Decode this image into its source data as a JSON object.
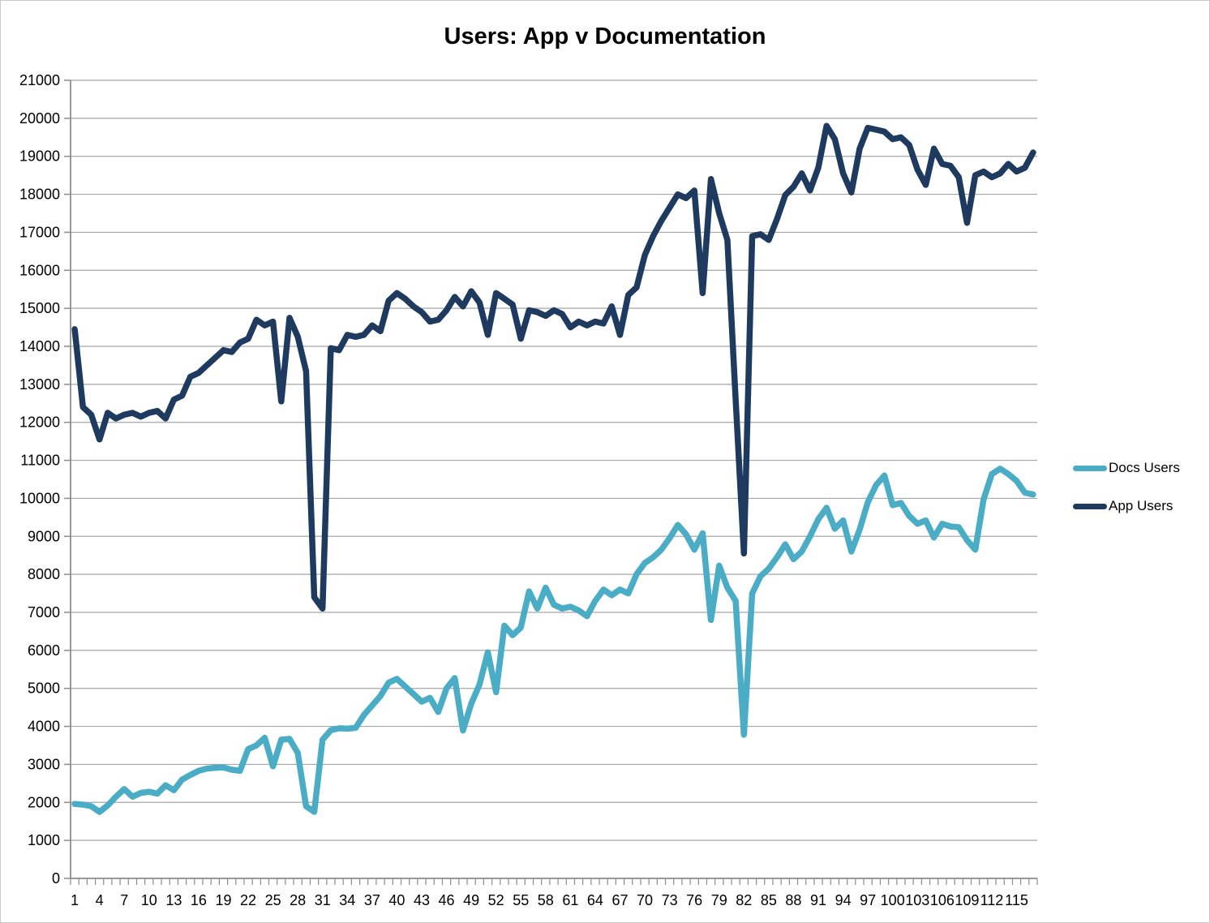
{
  "chart_data": {
    "type": "line",
    "title": "Users: App v Documentation",
    "xlabel": "",
    "ylabel": "",
    "point_count": 117,
    "x_label_interval": 3,
    "x_tick_labels": [
      "1",
      "4",
      "7",
      "10",
      "13",
      "16",
      "19",
      "22",
      "25",
      "28",
      "31",
      "34",
      "37",
      "40",
      "43",
      "46",
      "49",
      "52",
      "55",
      "58",
      "61",
      "64",
      "67",
      "70",
      "73",
      "76",
      "79",
      "82",
      "85",
      "88",
      "91",
      "94",
      "97",
      "100",
      "103",
      "106",
      "109",
      "112",
      "115"
    ],
    "ylim": [
      0,
      21000
    ],
    "y_tick_interval": 1000,
    "y_tick_labels": [
      "0",
      "1000",
      "2000",
      "3000",
      "4000",
      "5000",
      "6000",
      "7000",
      "8000",
      "9000",
      "10000",
      "11000",
      "12000",
      "13000",
      "14000",
      "15000",
      "16000",
      "17000",
      "18000",
      "19000",
      "20000",
      "21000"
    ],
    "grid": true,
    "legend_position": "right",
    "gridline_color": "#A6A6A6",
    "axis_color": "#8C8C8C",
    "background_color": "#FFFFFF",
    "series": [
      {
        "name": "Docs Users",
        "color": "#4BACC6",
        "values": [
          1960,
          1940,
          1900,
          1750,
          1920,
          2150,
          2350,
          2150,
          2250,
          2280,
          2230,
          2450,
          2320,
          2600,
          2720,
          2830,
          2890,
          2910,
          2920,
          2860,
          2830,
          3400,
          3500,
          3700,
          2950,
          3650,
          3670,
          3300,
          1900,
          1750,
          3650,
          3900,
          3950,
          3940,
          3960,
          4300,
          4550,
          4800,
          5150,
          5250,
          5050,
          4850,
          4650,
          4750,
          4380,
          5000,
          5270,
          3890,
          4600,
          5100,
          5950,
          4900,
          6650,
          6400,
          6600,
          7550,
          7100,
          7650,
          7200,
          7100,
          7150,
          7050,
          6900,
          7300,
          7600,
          7450,
          7600,
          7500,
          8000,
          8300,
          8450,
          8650,
          8950,
          9300,
          9050,
          8650,
          9080,
          6800,
          8230,
          7650,
          7300,
          3780,
          7500,
          7950,
          8150,
          8450,
          8790,
          8400,
          8600,
          9000,
          9450,
          9750,
          9200,
          9420,
          8600,
          9180,
          9900,
          10350,
          10600,
          9820,
          9880,
          9540,
          9330,
          9420,
          8970,
          9330,
          9260,
          9240,
          8900,
          8650,
          9970,
          10640,
          10780,
          10640,
          10460,
          10150,
          10100
        ]
      },
      {
        "name": "App Users",
        "color": "#1E3A5E",
        "values": [
          14450,
          12400,
          12200,
          11550,
          12250,
          12100,
          12200,
          12250,
          12150,
          12250,
          12300,
          12100,
          12600,
          12700,
          13200,
          13300,
          13500,
          13700,
          13900,
          13850,
          14100,
          14200,
          14700,
          14550,
          14650,
          12550,
          14750,
          14250,
          13350,
          7400,
          7100,
          13950,
          13900,
          14300,
          14250,
          14300,
          14550,
          14400,
          15200,
          15400,
          15250,
          15050,
          14900,
          14650,
          14700,
          14950,
          15300,
          15050,
          15450,
          15150,
          14300,
          15400,
          15250,
          15100,
          14200,
          14950,
          14900,
          14800,
          14950,
          14850,
          14500,
          14650,
          14550,
          14650,
          14600,
          15050,
          14300,
          15350,
          15550,
          16400,
          16900,
          17300,
          17650,
          18000,
          17900,
          18100,
          15400,
          18400,
          17500,
          16800,
          12600,
          8550,
          16900,
          16950,
          16800,
          17350,
          17980,
          18200,
          18550,
          18100,
          18700,
          19800,
          19450,
          18550,
          18050,
          19200,
          19750,
          19700,
          19650,
          19450,
          19500,
          19300,
          18650,
          18250,
          19200,
          18800,
          18750,
          18450,
          17250,
          18500,
          18600,
          18450,
          18550,
          18800,
          18600,
          18700,
          19100
        ]
      }
    ]
  },
  "legend": {
    "items": [
      {
        "label": "Docs Users"
      },
      {
        "label": "App Users"
      }
    ]
  }
}
